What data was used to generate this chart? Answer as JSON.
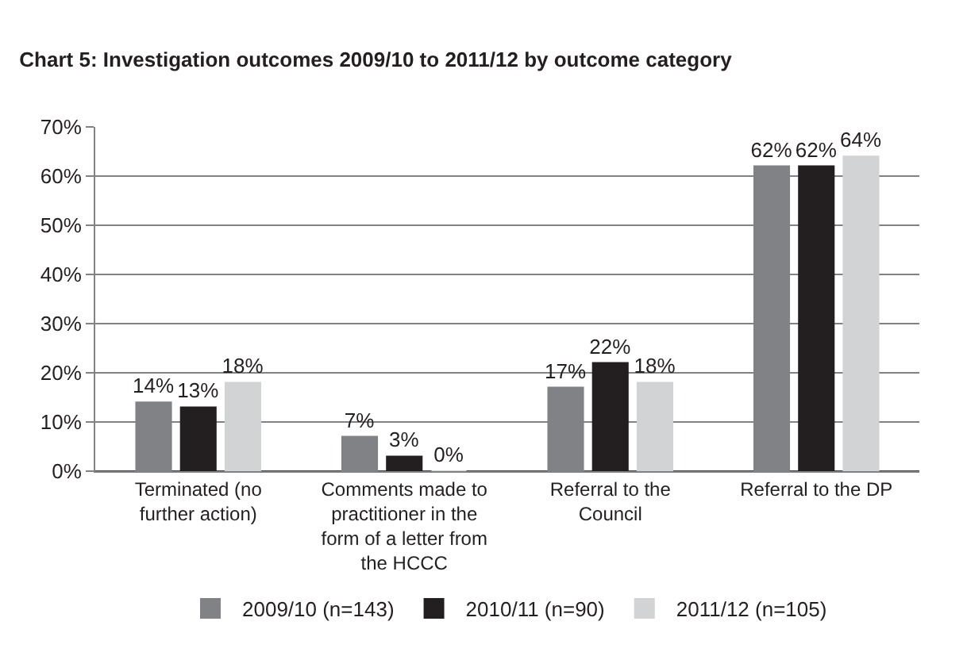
{
  "chart_data": {
    "type": "bar",
    "title": "Chart 5: Investigation outcomes 2009/10 to 2011/12 by outcome category",
    "categories": [
      "Terminated (no further action)",
      "Comments made to practitioner in the form of a letter from the HCCC",
      "Referral to the Council",
      "Referral to the DP"
    ],
    "series": [
      {
        "name": "2009/10 (n=143)",
        "color": "#808285",
        "values": [
          14,
          7,
          17,
          62
        ],
        "value_labels": [
          "14%",
          "7%",
          "17%",
          "62%"
        ]
      },
      {
        "name": "2010/11 (n=90)",
        "color": "#231f20",
        "values": [
          13,
          3,
          22,
          62
        ],
        "value_labels": [
          "13%",
          "3%",
          "22%",
          "62%"
        ]
      },
      {
        "name": "2011/12 (n=105)",
        "color": "#d1d3d4",
        "values": [
          18,
          0,
          18,
          64
        ],
        "value_labels": [
          "18%",
          "0%",
          "18%",
          "64%"
        ]
      }
    ],
    "ylim": [
      0,
      70
    ],
    "yticks": [
      {
        "value": 0,
        "label": "0%"
      },
      {
        "value": 10,
        "label": "10%"
      },
      {
        "value": 20,
        "label": "20%"
      },
      {
        "value": 30,
        "label": "30%"
      },
      {
        "value": 40,
        "label": "40%"
      },
      {
        "value": 50,
        "label": "50%"
      },
      {
        "value": 60,
        "label": "60%"
      },
      {
        "value": 70,
        "label": "70%"
      }
    ],
    "grid": "y",
    "legend": "bottom"
  }
}
